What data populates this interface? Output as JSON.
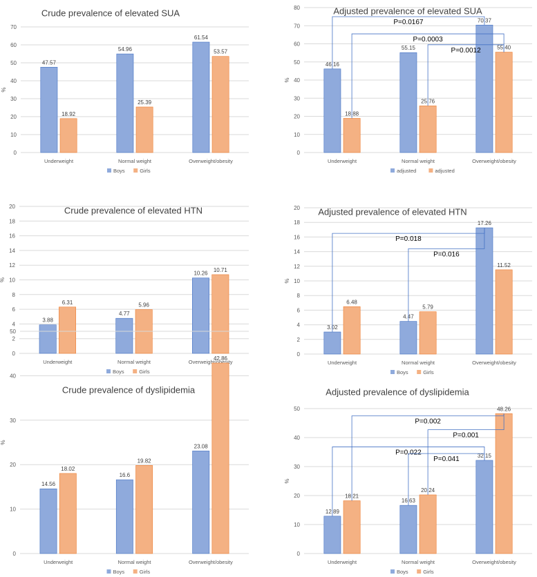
{
  "colors": {
    "boys": "#8faadc",
    "girls": "#f4b183",
    "boys_edge": "#4472c4",
    "girls_edge": "#ed7d31",
    "bracket": "#4472c4"
  },
  "chart_data": [
    {
      "type": "bar",
      "title": "Crude prevalence of elevated SUA",
      "ylabel": "%",
      "ylim": [
        0,
        70
      ],
      "ystep": 10,
      "categories": [
        "Underweight",
        "Normal weight",
        "Overweight/obesity"
      ],
      "series": [
        {
          "name": "Boys",
          "values": [
            47.57,
            54.96,
            61.54
          ]
        },
        {
          "name": "Girls",
          "values": [
            18.92,
            25.39,
            53.57
          ]
        }
      ],
      "data_labels": [
        [
          "47.57",
          "54.96",
          "61.54"
        ],
        [
          "18.92",
          "25.39",
          "53.57"
        ]
      ],
      "comparisons": []
    },
    {
      "type": "bar",
      "title": "Adjusted prevalence of elevated SUA",
      "ylabel": "%",
      "ylim": [
        0,
        80
      ],
      "ystep": 10,
      "categories": [
        "Underweight",
        "Normal weight",
        "Overweight/obesity"
      ],
      "series": [
        {
          "name": "adjusted",
          "values": [
            46.16,
            55.15,
            70.37
          ]
        },
        {
          "name": "adjusted",
          "values": [
            18.88,
            25.76,
            55.4
          ]
        }
      ],
      "data_labels": [
        [
          "46.16",
          "55.15",
          "70.37"
        ],
        [
          "18.88",
          "25.76",
          "55.40"
        ]
      ],
      "comparisons": [
        {
          "label": "P=0.0167",
          "from": [
            0,
            0
          ],
          "to": [
            0,
            2
          ],
          "level": 75
        },
        {
          "label": "P=0.0003",
          "from": [
            1,
            0
          ],
          "to": [
            1,
            2
          ],
          "level": 65.5
        },
        {
          "label": "P=0.0012",
          "from": [
            1,
            1
          ],
          "to": [
            1,
            2
          ],
          "level": 59.5
        }
      ]
    },
    {
      "type": "bar",
      "title": "Crude prevalence of elevated HTN",
      "ylabel": "%",
      "ylim": [
        0,
        20
      ],
      "ystep": 2,
      "categories": [
        "Underweight",
        "Normal weight",
        "Overweight/obesity"
      ],
      "series": [
        {
          "name": "Boys",
          "values": [
            3.88,
            4.77,
            10.26
          ]
        },
        {
          "name": "Girls",
          "values": [
            6.31,
            5.96,
            10.71
          ]
        }
      ],
      "data_labels": [
        [
          "3.88",
          "4.77",
          "10.26"
        ],
        [
          "6.31",
          "5.96",
          "10.71"
        ]
      ],
      "comparisons": []
    },
    {
      "type": "bar",
      "title": "Adjusted prevalence of elevated HTN",
      "ylabel": "%",
      "ylim": [
        0,
        20
      ],
      "ystep": 2,
      "categories": [
        "Underweight",
        "Normal weight",
        "Overweight/obesity"
      ],
      "series": [
        {
          "name": "Boys",
          "values": [
            3.02,
            4.47,
            17.26
          ]
        },
        {
          "name": "Girls",
          "values": [
            6.48,
            5.79,
            11.52
          ]
        }
      ],
      "data_labels": [
        [
          "3.02",
          "4.47",
          "17.26"
        ],
        [
          "6.48",
          "5.79",
          "11.52"
        ]
      ],
      "comparisons": [
        {
          "label": "P=0.018",
          "from": [
            0,
            0
          ],
          "to": [
            0,
            2
          ],
          "level": 16.5
        },
        {
          "label": "P=0.016",
          "from": [
            0,
            1
          ],
          "to": [
            0,
            2
          ],
          "level": 14.4
        }
      ]
    },
    {
      "type": "bar",
      "title": "Crude prevalence of dyslipidemia",
      "ylabel": "%",
      "ylim": [
        0,
        50
      ],
      "ystep": 10,
      "categories": [
        "Underweight",
        "Normal weight",
        "Overweight/obesity"
      ],
      "series": [
        {
          "name": "Boys",
          "values": [
            14.56,
            16.6,
            23.08
          ]
        },
        {
          "name": "Girls",
          "values": [
            18.02,
            19.82,
            42.86
          ]
        }
      ],
      "data_labels": [
        [
          "14.56",
          "16.6",
          "23.08"
        ],
        [
          "18.02",
          "19.82",
          "42.86"
        ]
      ],
      "comparisons": []
    },
    {
      "type": "bar",
      "title": "Adjusted prevalence of dyslipidemia",
      "ylabel": "%",
      "ylim": [
        0,
        50
      ],
      "ystep": 10,
      "categories": [
        "Underweight",
        "Normal weight",
        "Overweight/obesity"
      ],
      "series": [
        {
          "name": "Boys",
          "values": [
            12.89,
            16.63,
            32.15
          ]
        },
        {
          "name": "Girls",
          "values": [
            18.21,
            20.24,
            48.26
          ]
        }
      ],
      "data_labels": [
        [
          "12.89",
          "16.63",
          "32.15"
        ],
        [
          "18.21",
          "20.24",
          "48.26"
        ]
      ],
      "comparisons": [
        {
          "label": "P=0.002",
          "from": [
            1,
            0
          ],
          "to": [
            1,
            2
          ],
          "level": 47.5
        },
        {
          "label": "P=0.022",
          "from": [
            0,
            0
          ],
          "to": [
            0,
            2
          ],
          "level": 36.8
        },
        {
          "label": "P=0.001",
          "from": [
            1,
            1
          ],
          "to": [
            1,
            2
          ],
          "level": 42.7
        },
        {
          "label": "P=0.041",
          "from": [
            0,
            1
          ],
          "to": [
            0,
            2
          ],
          "level": 34.5
        }
      ]
    }
  ]
}
